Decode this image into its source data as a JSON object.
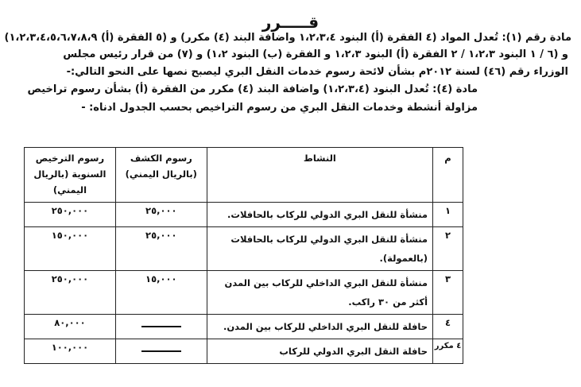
{
  "document": {
    "title": "قـــــرر",
    "paragraphs": [
      "مادة رقم (١): تُعدل المواد (٤ الفقرة (أ) البنود ١،٢،٣،٤ واضافة البند (٤) مكرر) و (٥ الفقرة (أ) ١،٢،٣،٤،٥،٦،٧،٨،٩)",
      "و (٦ / ١ البنود ١،٢،٣ / ٢ الفقرة (أ) البنود ١،٢،٣ و الفقرة (ب) البنود ١،٢) و (٧) من قرار رئيس مجلس",
      "الوزراء رقم (٤٦) لسنة ٢٠١٢م بشأن لائحة رسوم خدمات النقل البري ليصبح نصها على النحو التالي:-",
      "مادة (٤): تُعدل البنود (١،٢،٣،٤) واضافة البند (٤) مكرر من الفقرة (أ) بشأن رسوم تراخيص",
      "مزاولة أنشطة وخدمات النقل البري من رسوم التراخيص بحسب الجدول ادناه: -"
    ]
  },
  "table": {
    "headers": [
      "م",
      "النشاط",
      "رسوم الكشف (بالريال اليمني)",
      "رسوم الترخيص السنوية (بالريال اليمني)"
    ],
    "rows": [
      {
        "no": "١",
        "activity": "منشأة للنقل البري الدولي للركاب بالحافلات.",
        "inspection": "٢٥,٠٠٠",
        "license": "٢٥٠,٠٠٠"
      },
      {
        "no": "٢",
        "activity": "منشأة للنقل البري الدولي للركاب بالحافلات (بالعمولة).",
        "inspection": "٢٥,٠٠٠",
        "license": "١٥٠,٠٠٠"
      },
      {
        "no": "٣",
        "activity": "منشأة للنقل البري الداخلي للركاب بين المدن أكثر من ٣٠ راكب.",
        "inspection": "١٥,٠٠٠",
        "license": "٢٥٠,٠٠٠"
      },
      {
        "no": "٤",
        "activity": "حافلة للنقل البري الداخلي للركاب بين المدن.",
        "inspection": null,
        "license": "٨٠,٠٠٠"
      },
      {
        "no": "٤ مكرر",
        "activity": "حافلة النقل البري الدولي للركاب",
        "inspection": null,
        "license": "١٠٠,٠٠٠"
      }
    ]
  }
}
